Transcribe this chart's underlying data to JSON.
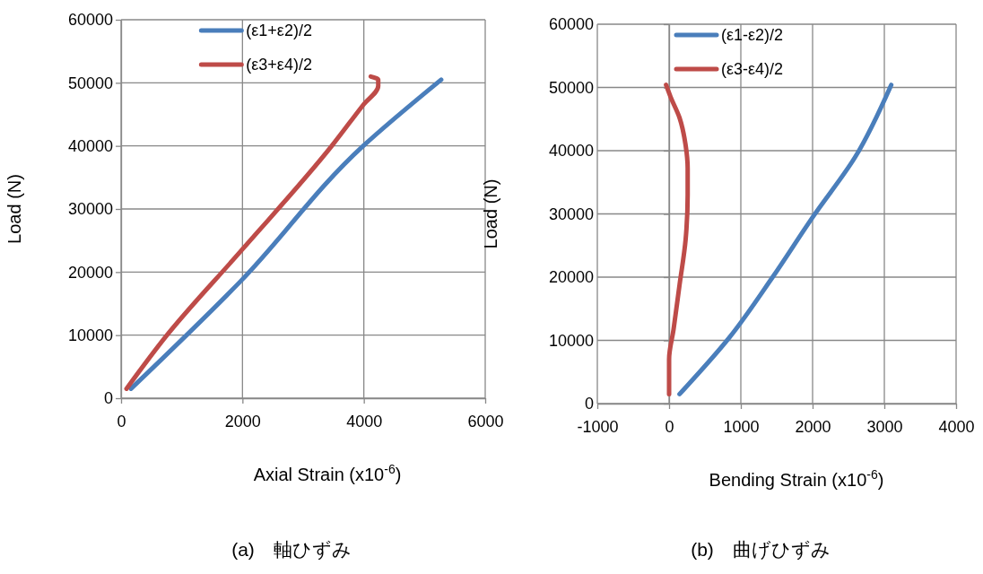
{
  "chart_data": [
    {
      "type": "line",
      "title": "(a)　軸ひずみ",
      "xlabel": "Axial Strain (x10$^{-6}$)",
      "ylabel": "Load (N)",
      "xlim": [
        0,
        6000
      ],
      "xticks": [
        0,
        2000,
        4000,
        6000
      ],
      "ylim": [
        0,
        60000
      ],
      "yticks": [
        0,
        10000,
        20000,
        30000,
        40000,
        50000,
        60000
      ],
      "grid": true,
      "legend": "top",
      "marker": "none",
      "line_style": "solid",
      "series": [
        {
          "name": "(ε1+ε2)/2",
          "color": "#4a7ebb",
          "x": [
            163,
            1965,
            3990,
            5274
          ],
          "values": [
            1500,
            18500,
            40000,
            50500
          ]
        },
        {
          "name": "(ε3+ε4)/2",
          "color": "#be4b48",
          "x": [
            89,
            756,
            1990,
            3472,
            3990,
            4237,
            4237,
            4114
          ],
          "values": [
            1500,
            10000,
            23500,
            40000,
            46500,
            49500,
            50500,
            51000
          ]
        }
      ]
    },
    {
      "type": "line",
      "title": "(b)　曲げひずみ",
      "xlabel": "Bending Strain (x10$^{-6}$)",
      "ylabel": "Load (N)",
      "xlim": [
        -1000,
        4000
      ],
      "xticks": [
        -1000,
        0,
        1000,
        2000,
        3000,
        4000
      ],
      "ylim": [
        0,
        60000
      ],
      "yticks": [
        0,
        10000,
        20000,
        30000,
        40000,
        50000,
        60000
      ],
      "grid": true,
      "legend": "top",
      "marker": "none",
      "line_style": "solid",
      "series": [
        {
          "name": "(ε1-ε2)/2",
          "color": "#4a7ebb",
          "x": [
            146,
            837,
            1443,
            2008,
            2594,
            3096
          ],
          "values": [
            1500,
            10400,
            20000,
            29600,
            39000,
            50400
          ]
        },
        {
          "name": "(ε3-ε4)/2",
          "color": "#be4b48",
          "x": [
            0,
            0,
            63,
            146,
            230,
            259,
            259,
            230,
            146,
            21,
            -42
          ],
          "values": [
            1500,
            7000,
            11800,
            18800,
            25900,
            33000,
            37200,
            40900,
            45200,
            48500,
            50400
          ]
        }
      ]
    }
  ]
}
